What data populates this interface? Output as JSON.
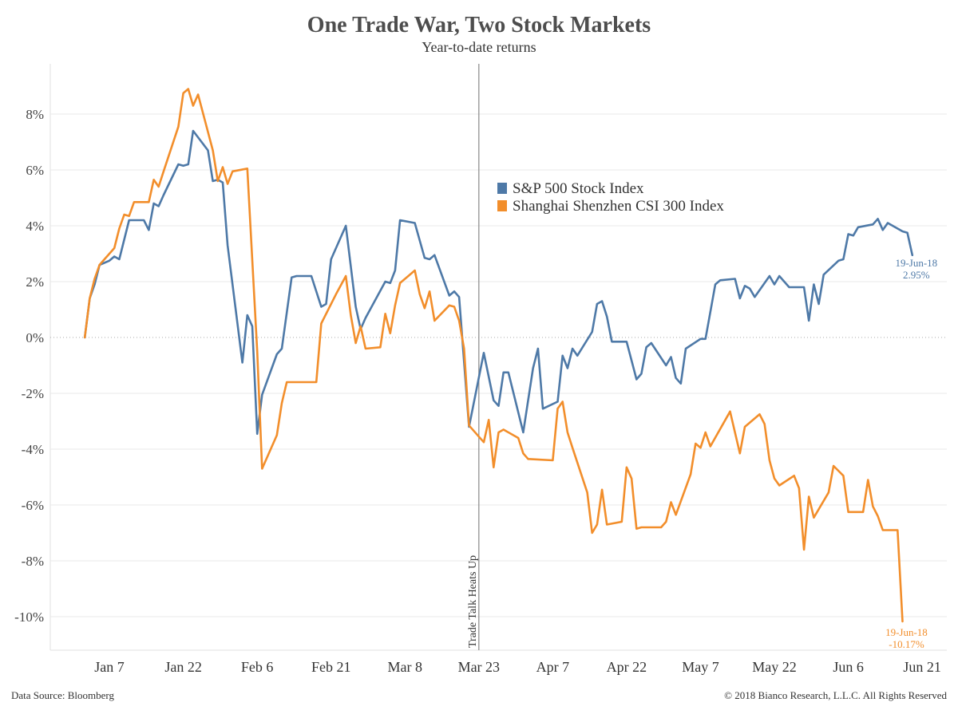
{
  "header": {
    "title": "One Trade War, Two Stock Markets",
    "subtitle": "Year-to-date returns"
  },
  "footer": {
    "source": "Data Source: Bloomberg",
    "copyright": "© 2018 Bianco Research, L.L.C. All Rights Reserved"
  },
  "colors": {
    "sp500": "#4e79a7",
    "csi300": "#f28e2b",
    "grid": "#e8e8e8",
    "zero_line": "#aaaaaa",
    "event_line": "#888888"
  },
  "chart_data": {
    "type": "line",
    "title": "One Trade War, Two Stock Markets",
    "subtitle": "Year-to-date returns",
    "x_unit": "days since Jan 1, 2018",
    "xlim": [
      -6,
      176
    ],
    "ylim": [
      -11.2,
      9.8
    ],
    "ylabel": "",
    "xlabel": "",
    "grid": true,
    "legend_position": "middle-right",
    "y_ticks": [
      -10,
      -8,
      -6,
      -4,
      -2,
      0,
      2,
      4,
      6,
      8
    ],
    "y_tick_labels": [
      "-10%",
      "-8%",
      "-6%",
      "-4%",
      "-2%",
      "0%",
      "2%",
      "4%",
      "6%",
      "8%"
    ],
    "x_ticks": [
      6,
      21,
      36,
      51,
      66,
      81,
      96,
      111,
      126,
      141,
      156,
      171
    ],
    "x_tick_labels": [
      "Jan 7",
      "Jan 22",
      "Feb 6",
      "Feb 21",
      "Mar 8",
      "Mar 23",
      "Apr 7",
      "Apr 22",
      "May 7",
      "May 22",
      "Jun 6",
      "Jun 21"
    ],
    "event": {
      "x": 81,
      "label": "Trade Talk Heats Up"
    },
    "series": [
      {
        "name": "S&P 500 Stock Index",
        "color": "#4e79a7",
        "end_label": {
          "date": "19-Jun-18",
          "value": "2.95%"
        },
        "points": [
          [
            1,
            0.0
          ],
          [
            2,
            1.4
          ],
          [
            3,
            1.9
          ],
          [
            4,
            2.6
          ],
          [
            6,
            2.75
          ],
          [
            7,
            2.9
          ],
          [
            8,
            2.8
          ],
          [
            10,
            4.2
          ],
          [
            13,
            4.2
          ],
          [
            14,
            3.85
          ],
          [
            15,
            4.8
          ],
          [
            16,
            4.7
          ],
          [
            17,
            5.1
          ],
          [
            20,
            6.2
          ],
          [
            21,
            6.15
          ],
          [
            22,
            6.2
          ],
          [
            23,
            7.4
          ],
          [
            26,
            6.7
          ],
          [
            27,
            5.6
          ],
          [
            28,
            5.65
          ],
          [
            29,
            5.55
          ],
          [
            30,
            3.3
          ],
          [
            33,
            -0.9
          ],
          [
            34,
            0.8
          ],
          [
            35,
            0.4
          ],
          [
            36,
            -3.45
          ],
          [
            37,
            -2.05
          ],
          [
            40,
            -0.6
          ],
          [
            41,
            -0.4
          ],
          [
            43,
            2.15
          ],
          [
            44,
            2.2
          ],
          [
            47,
            2.2
          ],
          [
            49,
            1.1
          ],
          [
            50,
            1.2
          ],
          [
            51,
            2.8
          ],
          [
            54,
            4.0
          ],
          [
            56,
            1.1
          ],
          [
            57,
            0.3
          ],
          [
            58,
            0.7
          ],
          [
            62,
            2.0
          ],
          [
            63,
            1.95
          ],
          [
            64,
            2.4
          ],
          [
            65,
            4.2
          ],
          [
            68,
            4.1
          ],
          [
            70,
            2.85
          ],
          [
            71,
            2.8
          ],
          [
            72,
            2.95
          ],
          [
            75,
            1.5
          ],
          [
            76,
            1.65
          ],
          [
            77,
            1.45
          ],
          [
            79,
            -3.2
          ],
          [
            82,
            -0.55
          ],
          [
            84,
            -2.25
          ],
          [
            85,
            -2.45
          ],
          [
            86,
            -1.25
          ],
          [
            87,
            -1.25
          ],
          [
            90,
            -3.4
          ],
          [
            92,
            -1.1
          ],
          [
            93,
            -0.4
          ],
          [
            94,
            -2.55
          ],
          [
            97,
            -2.3
          ],
          [
            98,
            -0.65
          ],
          [
            99,
            -1.1
          ],
          [
            100,
            -0.4
          ],
          [
            101,
            -0.65
          ],
          [
            104,
            0.2
          ],
          [
            105,
            1.2
          ],
          [
            106,
            1.3
          ],
          [
            107,
            0.75
          ],
          [
            108,
            -0.15
          ],
          [
            111,
            -0.15
          ],
          [
            113,
            -1.5
          ],
          [
            114,
            -1.3
          ],
          [
            115,
            -0.35
          ],
          [
            116,
            -0.2
          ],
          [
            119,
            -1.0
          ],
          [
            120,
            -0.7
          ],
          [
            121,
            -1.45
          ],
          [
            122,
            -1.65
          ],
          [
            123,
            -0.4
          ],
          [
            126,
            -0.05
          ],
          [
            127,
            -0.05
          ],
          [
            129,
            1.9
          ],
          [
            130,
            2.05
          ],
          [
            133,
            2.1
          ],
          [
            134,
            1.4
          ],
          [
            135,
            1.85
          ],
          [
            136,
            1.75
          ],
          [
            137,
            1.45
          ],
          [
            140,
            2.2
          ],
          [
            141,
            1.9
          ],
          [
            142,
            2.2
          ],
          [
            144,
            1.8
          ],
          [
            147,
            1.8
          ],
          [
            148,
            0.6
          ],
          [
            149,
            1.9
          ],
          [
            150,
            1.2
          ],
          [
            151,
            2.25
          ],
          [
            154,
            2.75
          ],
          [
            155,
            2.8
          ],
          [
            156,
            3.7
          ],
          [
            157,
            3.65
          ],
          [
            158,
            3.95
          ],
          [
            161,
            4.05
          ],
          [
            162,
            4.25
          ],
          [
            163,
            3.85
          ],
          [
            164,
            4.1
          ],
          [
            167,
            3.8
          ],
          [
            168,
            3.75
          ],
          [
            169,
            2.95
          ]
        ]
      },
      {
        "name": "Shanghai Shenzhen CSI 300 Index",
        "color": "#f28e2b",
        "end_label": {
          "date": "19-Jun-18",
          "value": "-10.17%"
        },
        "points": [
          [
            1,
            0.0
          ],
          [
            2,
            1.4
          ],
          [
            3,
            2.1
          ],
          [
            4,
            2.6
          ],
          [
            7,
            3.2
          ],
          [
            8,
            3.9
          ],
          [
            9,
            4.4
          ],
          [
            10,
            4.35
          ],
          [
            11,
            4.85
          ],
          [
            14,
            4.85
          ],
          [
            15,
            5.65
          ],
          [
            16,
            5.4
          ],
          [
            17,
            5.95
          ],
          [
            20,
            7.55
          ],
          [
            21,
            8.75
          ],
          [
            22,
            8.9
          ],
          [
            23,
            8.3
          ],
          [
            24,
            8.7
          ],
          [
            27,
            6.7
          ],
          [
            28,
            5.6
          ],
          [
            29,
            6.1
          ],
          [
            30,
            5.5
          ],
          [
            31,
            5.95
          ],
          [
            34,
            6.05
          ],
          [
            36,
            -0.5
          ],
          [
            37,
            -4.7
          ],
          [
            40,
            -3.5
          ],
          [
            41,
            -2.35
          ],
          [
            42,
            -1.6
          ],
          [
            48,
            -1.6
          ],
          [
            49,
            0.5
          ],
          [
            52,
            1.55
          ],
          [
            54,
            2.2
          ],
          [
            55,
            0.8
          ],
          [
            56,
            -0.2
          ],
          [
            57,
            0.4
          ],
          [
            58,
            -0.4
          ],
          [
            61,
            -0.35
          ],
          [
            62,
            0.85
          ],
          [
            63,
            0.15
          ],
          [
            64,
            1.15
          ],
          [
            65,
            1.95
          ],
          [
            68,
            2.4
          ],
          [
            69,
            1.55
          ],
          [
            70,
            1.05
          ],
          [
            71,
            1.65
          ],
          [
            72,
            0.6
          ],
          [
            75,
            1.15
          ],
          [
            76,
            1.1
          ],
          [
            77,
            0.6
          ],
          [
            78,
            -0.4
          ],
          [
            79,
            -3.15
          ],
          [
            82,
            -3.75
          ],
          [
            83,
            -2.95
          ],
          [
            84,
            -4.65
          ],
          [
            85,
            -3.4
          ],
          [
            86,
            -3.3
          ],
          [
            89,
            -3.6
          ],
          [
            90,
            -4.15
          ],
          [
            91,
            -4.35
          ],
          [
            96,
            -4.4
          ],
          [
            97,
            -2.55
          ],
          [
            98,
            -2.3
          ],
          [
            99,
            -3.4
          ],
          [
            100,
            -3.95
          ],
          [
            103,
            -5.55
          ],
          [
            104,
            -7.0
          ],
          [
            105,
            -6.7
          ],
          [
            106,
            -5.45
          ],
          [
            107,
            -6.7
          ],
          [
            110,
            -6.6
          ],
          [
            111,
            -4.65
          ],
          [
            112,
            -5.05
          ],
          [
            113,
            -6.85
          ],
          [
            114,
            -6.8
          ],
          [
            118,
            -6.8
          ],
          [
            119,
            -6.6
          ],
          [
            120,
            -5.9
          ],
          [
            121,
            -6.35
          ],
          [
            124,
            -4.9
          ],
          [
            125,
            -3.8
          ],
          [
            126,
            -3.95
          ],
          [
            127,
            -3.4
          ],
          [
            128,
            -3.9
          ],
          [
            132,
            -2.65
          ],
          [
            134,
            -4.15
          ],
          [
            135,
            -3.2
          ],
          [
            138,
            -2.75
          ],
          [
            139,
            -3.1
          ],
          [
            140,
            -4.4
          ],
          [
            141,
            -5.05
          ],
          [
            142,
            -5.3
          ],
          [
            145,
            -4.95
          ],
          [
            146,
            -5.4
          ],
          [
            147,
            -7.6
          ],
          [
            148,
            -5.7
          ],
          [
            149,
            -6.45
          ],
          [
            152,
            -5.55
          ],
          [
            153,
            -4.6
          ],
          [
            155,
            -4.95
          ],
          [
            156,
            -6.25
          ],
          [
            159,
            -6.25
          ],
          [
            160,
            -5.1
          ],
          [
            161,
            -6.05
          ],
          [
            162,
            -6.4
          ],
          [
            163,
            -6.9
          ],
          [
            166,
            -6.9
          ],
          [
            167,
            -10.17
          ]
        ]
      }
    ]
  }
}
